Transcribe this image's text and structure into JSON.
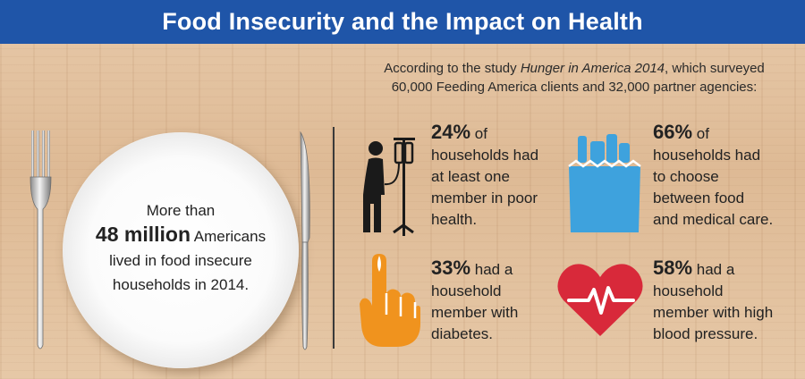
{
  "banner": {
    "title": "Food Insecurity and the Impact on Health"
  },
  "intro": {
    "lead": "According to the study ",
    "study": "Hunger in America 2014",
    "tail": ", which surveyed",
    "line2": "60,000 Feeding America clients and 32,000 partner agencies:"
  },
  "plate": {
    "line1": "More than",
    "big": "48 million",
    "line2": " Americans",
    "line3": "lived in food insecure",
    "line4": "households in 2014."
  },
  "stats": [
    {
      "pct": "24%",
      "text": " of",
      "rest": [
        "households had",
        "at least one",
        "member in poor",
        "health."
      ],
      "icon": "patient-iv-icon"
    },
    {
      "pct": "66%",
      "text": " of",
      "rest": [
        "households had",
        "to choose",
        "between food",
        "and medical care."
      ],
      "icon": "grocery-bag-icon"
    },
    {
      "pct": "33%",
      "text": " had a",
      "rest": [
        "household",
        "member with",
        "diabetes."
      ],
      "icon": "finger-prick-icon"
    },
    {
      "pct": "58%",
      "text": " had a",
      "rest": [
        "household",
        "member with high",
        "blood pressure."
      ],
      "icon": "heartbeat-icon"
    }
  ],
  "colors": {
    "banner": "#1f55a8",
    "bag": "#3ea2dd",
    "finger": "#f0931e",
    "heart": "#d8293a"
  }
}
